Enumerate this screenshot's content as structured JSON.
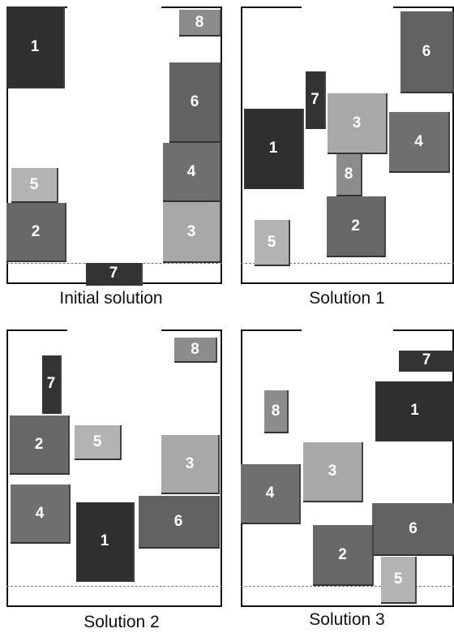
{
  "shade_colors": {
    "1": "#2f2f2f",
    "2": "#686868",
    "3": "#a8a8a8",
    "4": "#6f6f6f",
    "5": "#b3b3b3",
    "6": "#626262",
    "7": "#333333",
    "8": "#8c8c8c"
  },
  "panels": [
    {
      "caption": "Initial solution",
      "blocks": [
        {
          "label": "1",
          "shade": "1"
        },
        {
          "label": "5",
          "shade": "5"
        },
        {
          "label": "2",
          "shade": "2"
        },
        {
          "label": "7",
          "shade": "7"
        },
        {
          "label": "8",
          "shade": "8"
        },
        {
          "label": "6",
          "shade": "6"
        },
        {
          "label": "4",
          "shade": "4"
        },
        {
          "label": "3",
          "shade": "3"
        }
      ]
    },
    {
      "caption": "Solution 1",
      "blocks": [
        {
          "label": "6",
          "shade": "6"
        },
        {
          "label": "7",
          "shade": "7"
        },
        {
          "label": "3",
          "shade": "3"
        },
        {
          "label": "1",
          "shade": "1"
        },
        {
          "label": "4",
          "shade": "4"
        },
        {
          "label": "8",
          "shade": "8"
        },
        {
          "label": "2",
          "shade": "2"
        },
        {
          "label": "5",
          "shade": "5"
        }
      ]
    },
    {
      "caption": "Solution 2",
      "blocks": [
        {
          "label": "8",
          "shade": "8"
        },
        {
          "label": "7",
          "shade": "7"
        },
        {
          "label": "2",
          "shade": "2"
        },
        {
          "label": "5",
          "shade": "5"
        },
        {
          "label": "3",
          "shade": "3"
        },
        {
          "label": "4",
          "shade": "4"
        },
        {
          "label": "6",
          "shade": "6"
        },
        {
          "label": "1",
          "shade": "1"
        }
      ]
    },
    {
      "caption": "Solution 3",
      "blocks": [
        {
          "label": "7",
          "shade": "7"
        },
        {
          "label": "1",
          "shade": "1"
        },
        {
          "label": "8",
          "shade": "8"
        },
        {
          "label": "3",
          "shade": "3"
        },
        {
          "label": "4",
          "shade": "4"
        },
        {
          "label": "6",
          "shade": "6"
        },
        {
          "label": "2",
          "shade": "2"
        },
        {
          "label": "5",
          "shade": "5"
        }
      ]
    }
  ]
}
